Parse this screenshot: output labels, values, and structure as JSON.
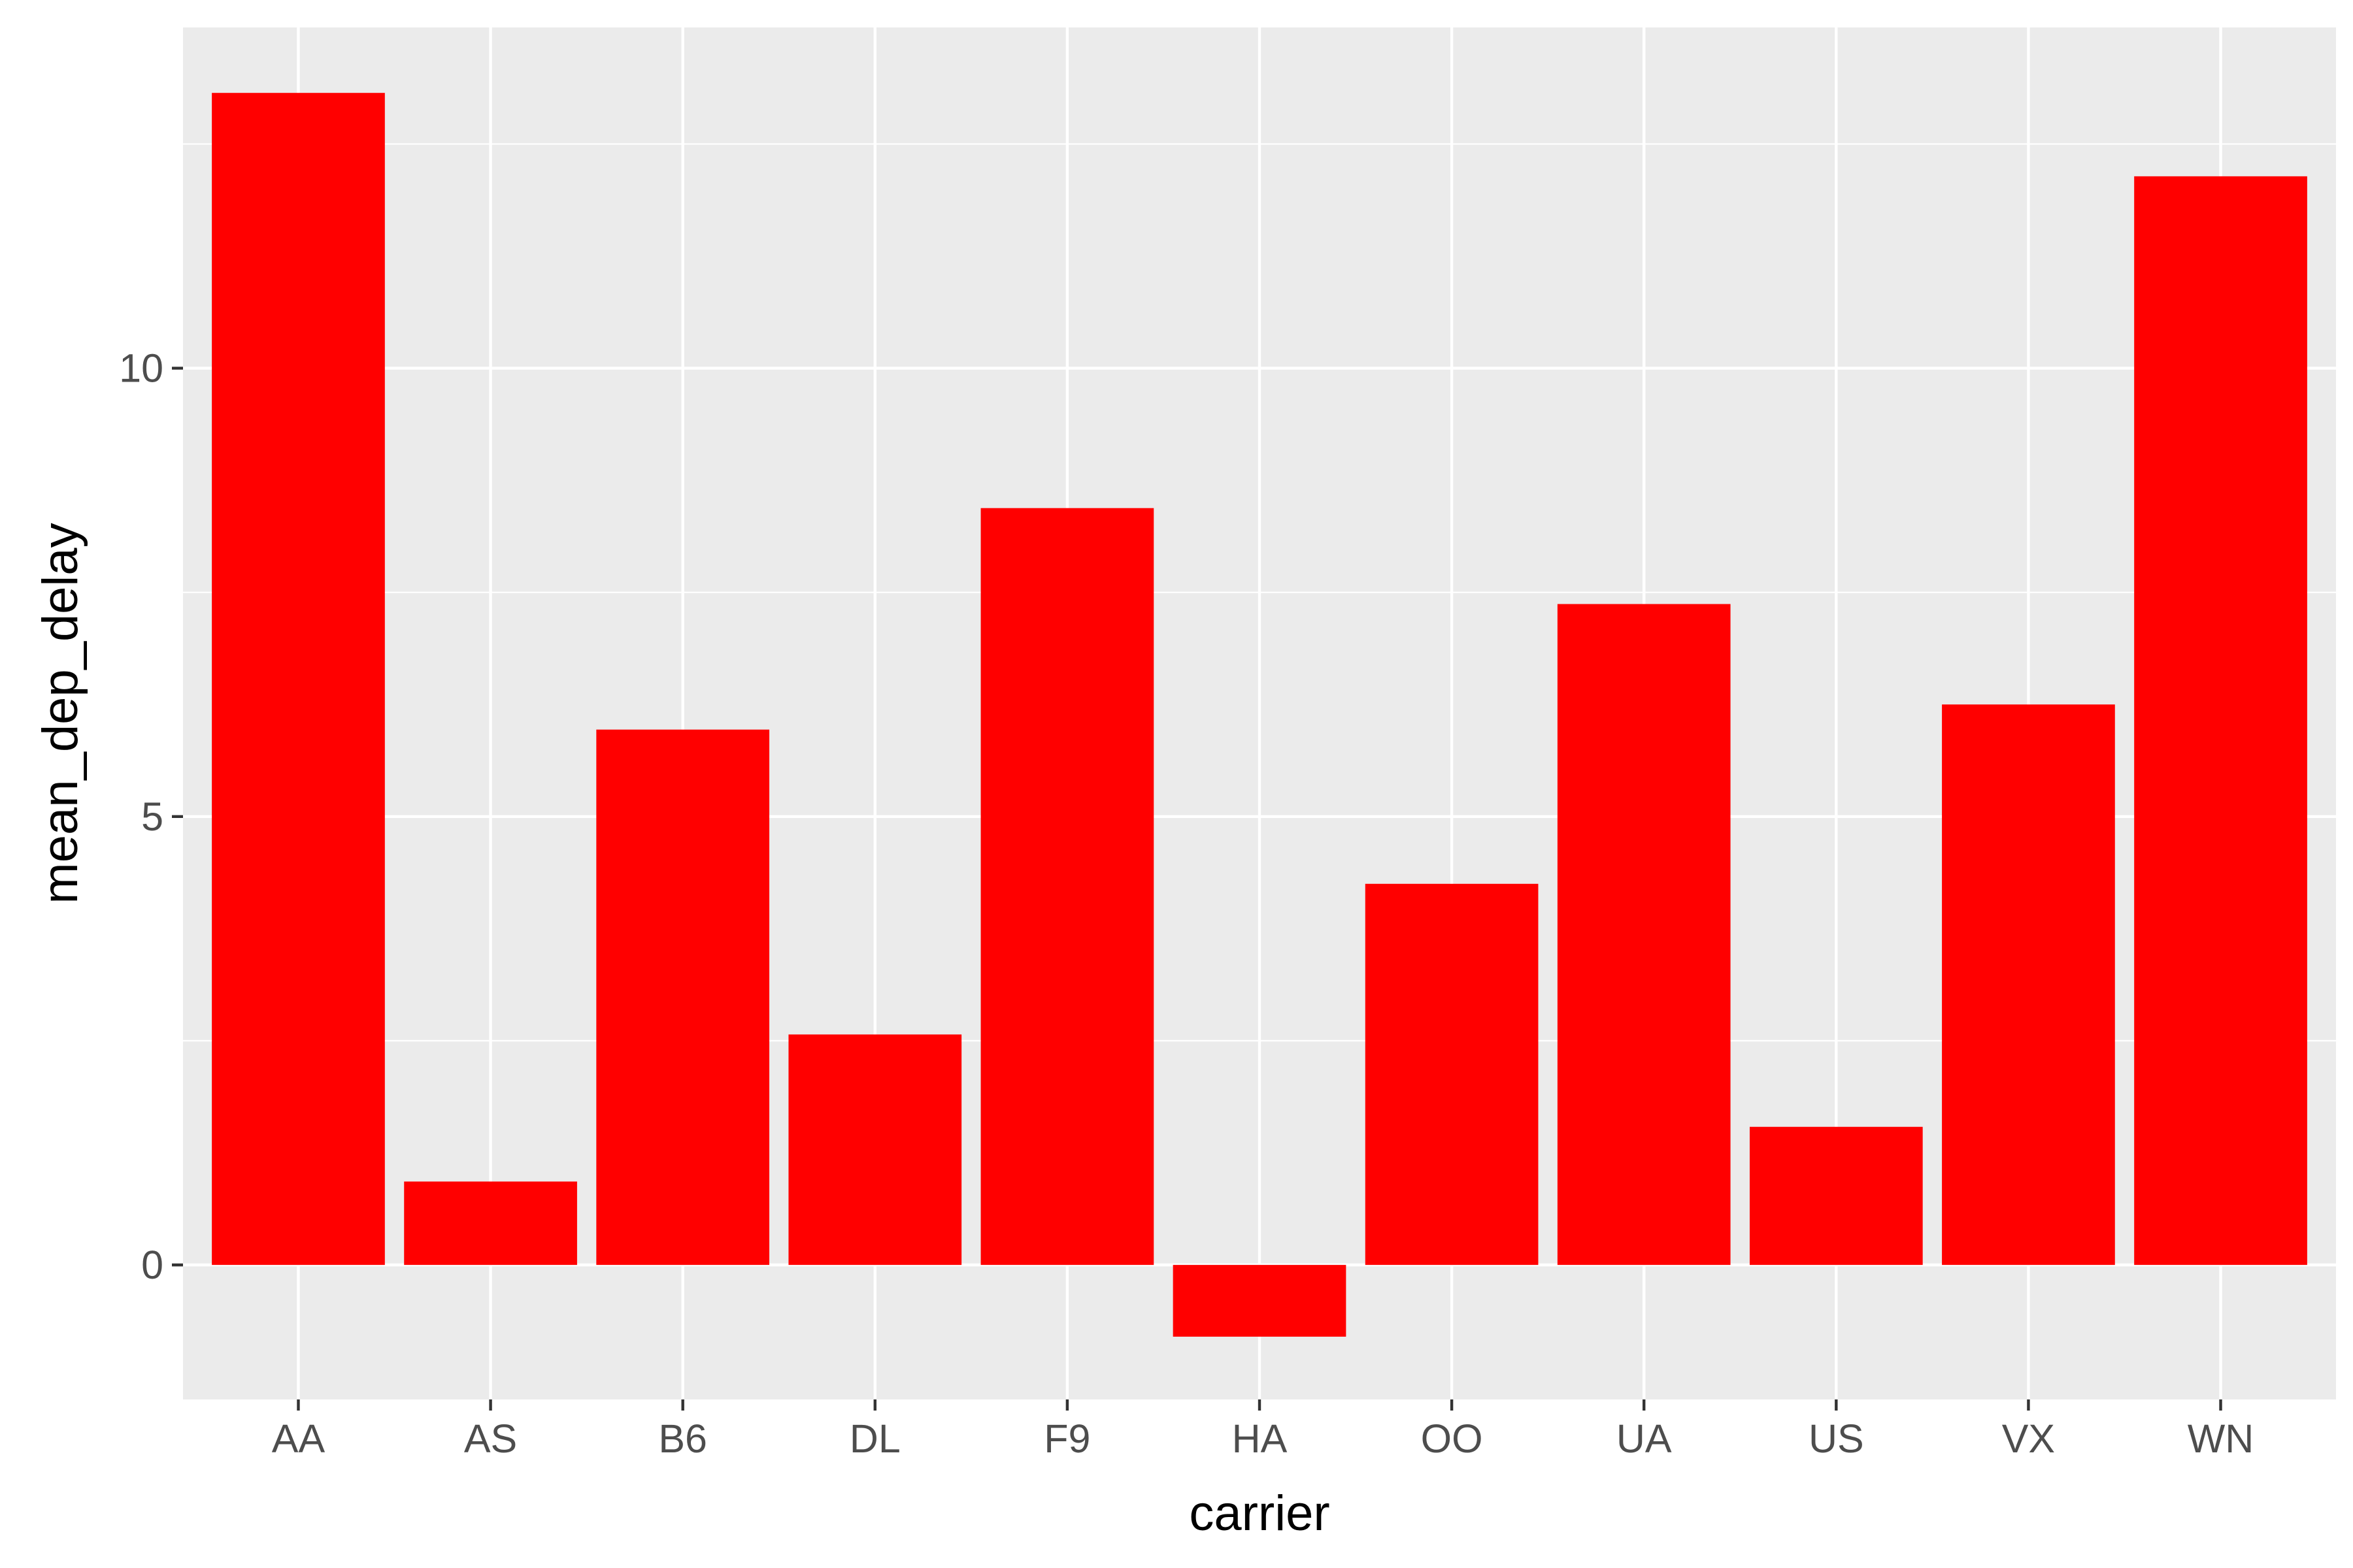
{
  "chart_data": {
    "type": "bar",
    "title": "",
    "xlabel": "carrier",
    "ylabel": "mean_dep_delay",
    "categories": [
      "AA",
      "AS",
      "B6",
      "DL",
      "F9",
      "HA",
      "OO",
      "UA",
      "US",
      "VX",
      "WN"
    ],
    "values": [
      13.07,
      0.93,
      5.97,
      2.57,
      8.44,
      -0.8,
      4.25,
      7.37,
      1.54,
      6.25,
      12.14
    ],
    "ylim": [
      -1.5,
      13.8
    ],
    "yticks": [
      0,
      5,
      10
    ],
    "grid": true,
    "legend": "none",
    "colors": {
      "bar": "#ff0000",
      "panel_background": "#ebebeb",
      "grid": "#ffffff",
      "tick_text": "#4d4d4d",
      "axis_title": "#000000"
    }
  }
}
